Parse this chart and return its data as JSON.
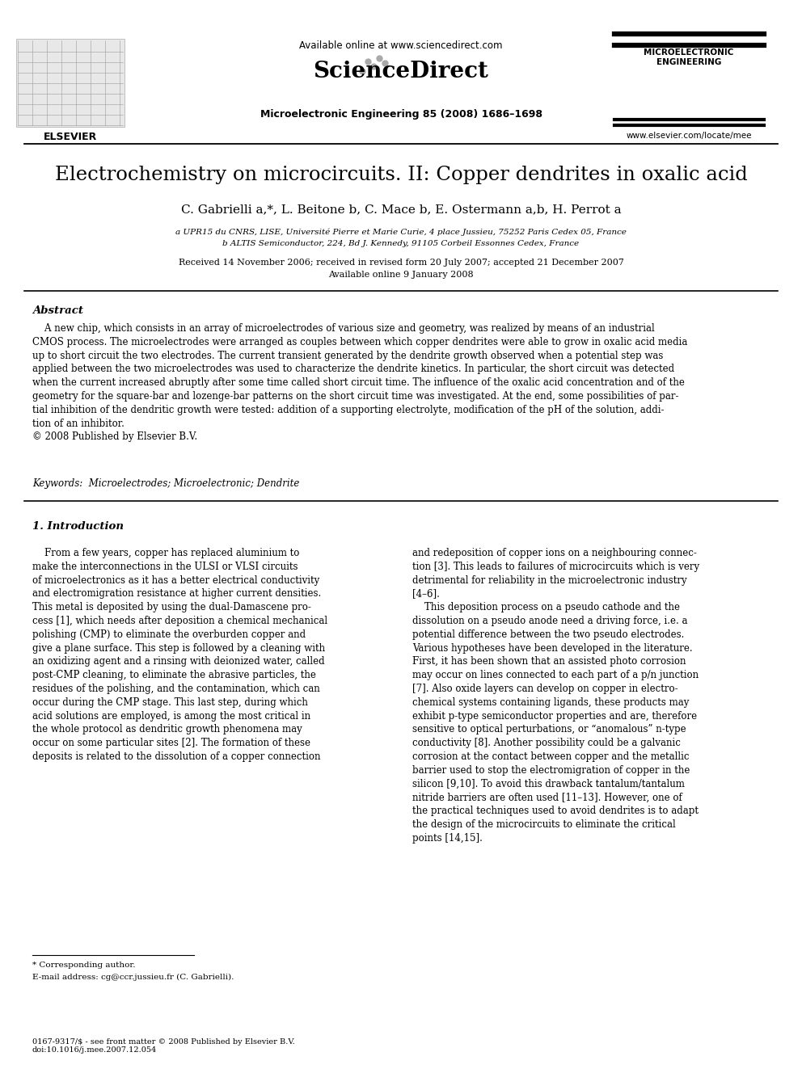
{
  "bg_color": "#ffffff",
  "available_online": "Available online at www.sciencedirect.com",
  "sciencedirect": "ScienceDirect",
  "journal_name": "Microelectronic Engineering 85 (2008) 1686–1698",
  "journal_abbrev": "MICROELECTRONIC\nENGINEERING",
  "website": "www.elsevier.com/locate/mee",
  "elsevier": "ELSEVIER",
  "title": "Electrochemistry on microcircuits. II: Copper dendrites in oxalic acid",
  "authors": "C. Gabrielli a,*, L. Beitone b, C. Mace b, E. Ostermann a,b, H. Perrot a",
  "affil1": "a UPR15 du CNRS, LISE, Université Pierre et Marie Curie, 4 place Jussieu, 75252 Paris Cedex 05, France",
  "affil2": "b ALTIS Semiconductor, 224, Bd J. Kennedy, 91105 Corbeil Essonnes Cedex, France",
  "received": "Received 14 November 2006; received in revised form 20 July 2007; accepted 21 December 2007",
  "available": "Available online 9 January 2008",
  "abstract_title": "Abstract",
  "abstract_text": "    A new chip, which consists in an array of microelectrodes of various size and geometry, was realized by means of an industrial\nCMOS process. The microelectrodes were arranged as couples between which copper dendrites were able to grow in oxalic acid media\nup to short circuit the two electrodes. The current transient generated by the dendrite growth observed when a potential step was\napplied between the two microelectrodes was used to characterize the dendrite kinetics. In particular, the short circuit was detected\nwhen the current increased abruptly after some time called short circuit time. The influence of the oxalic acid concentration and of the\ngeometry for the square-bar and lozenge-bar patterns on the short circuit time was investigated. At the end, some possibilities of par-\ntial inhibition of the dendritic growth were tested: addition of a supporting electrolyte, modification of the pH of the solution, addi-\ntion of an inhibitor.\n© 2008 Published by Elsevier B.V.",
  "keywords": "Keywords:  Microelectrodes; Microelectronic; Dendrite",
  "section1_title": "1. Introduction",
  "col1_text": "    From a few years, copper has replaced aluminium to\nmake the interconnections in the ULSI or VLSI circuits\nof microelectronics as it has a better electrical conductivity\nand electromigration resistance at higher current densities.\nThis metal is deposited by using the dual-Damascene pro-\ncess [1], which needs after deposition a chemical mechanical\npolishing (CMP) to eliminate the overburden copper and\ngive a plane surface. This step is followed by a cleaning with\nan oxidizing agent and a rinsing with deionized water, called\npost-CMP cleaning, to eliminate the abrasive particles, the\nresidues of the polishing, and the contamination, which can\noccur during the CMP stage. This last step, during which\nacid solutions are employed, is among the most critical in\nthe whole protocol as dendritic growth phenomena may\noccur on some particular sites [2]. The formation of these\ndeposits is related to the dissolution of a copper connection",
  "col2_text": "and redeposition of copper ions on a neighbouring connec-\ntion [3]. This leads to failures of microcircuits which is very\ndetrimental for reliability in the microelectronic industry\n[4–6].\n    This deposition process on a pseudo cathode and the\ndissolution on a pseudo anode need a driving force, i.e. a\npotential difference between the two pseudo electrodes.\nVarious hypotheses have been developed in the literature.\nFirst, it has been shown that an assisted photo corrosion\nmay occur on lines connected to each part of a p/n junction\n[7]. Also oxide layers can develop on copper in electro-\nchemical systems containing ligands, these products may\nexhibit p-type semiconductor properties and are, therefore\nsensitive to optical perturbations, or “anomalous” n-type\nconductivity [8]. Another possibility could be a galvanic\ncorrosion at the contact between copper and the metallic\nbarrier used to stop the electromigration of copper in the\nsilicon [9,10]. To avoid this drawback tantalum/tantalum\nnitride barriers are often used [11–13]. However, one of\nthe practical techniques used to avoid dendrites is to adapt\nthe design of the microcircuits to eliminate the critical\npoints [14,15].",
  "footnote_star": "* Corresponding author.",
  "footnote_email": "E-mail address: cg@ccr.jussieu.fr (C. Gabrielli).",
  "footer": "0167-9317/$ - see front matter © 2008 Published by Elsevier B.V.\ndoi:10.1016/j.mee.2007.12.054"
}
